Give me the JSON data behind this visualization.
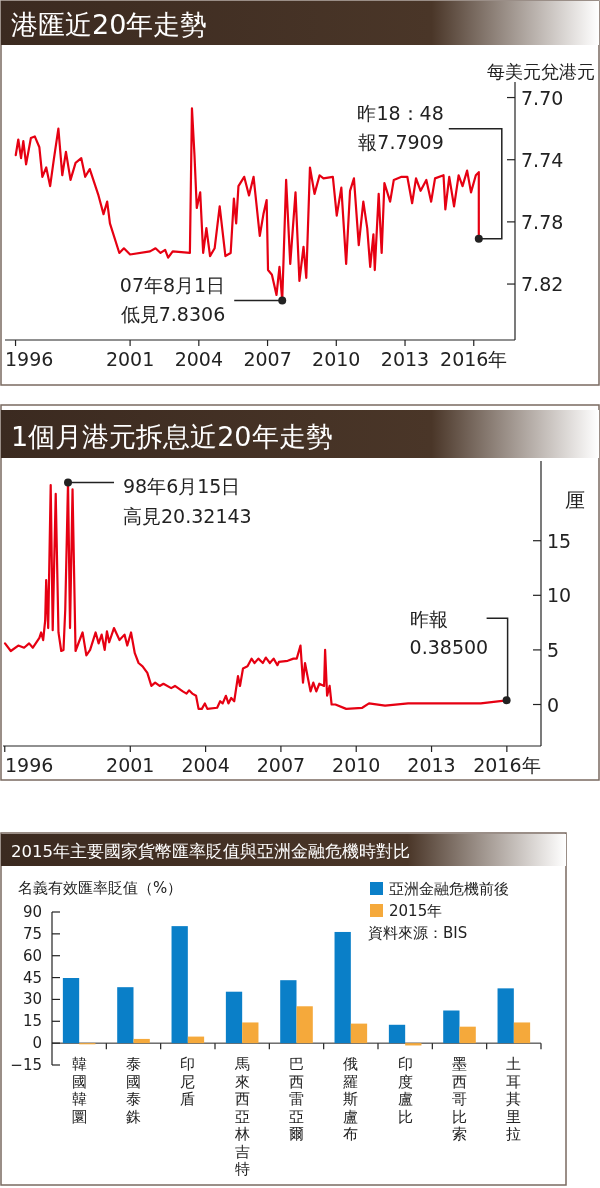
{
  "chart_data": [
    {
      "type": "line",
      "title": "港匯近20年走勢",
      "ylabel": "每美元兌港元",
      "xlim": [
        1995.54,
        2017.8
      ],
      "ylim": [
        7.856,
        7.69
      ],
      "xticks": [
        1996,
        2001,
        2004,
        2007,
        2010,
        2013,
        {
          "value": 2016,
          "label": "2016年"
        }
      ],
      "yticks": [
        {
          "value": 7.7,
          "label": "7.70"
        },
        7.74,
        7.78,
        7.82
      ],
      "x": [
        1996.01,
        1996.12,
        1996.24,
        1996.34,
        1996.46,
        1996.67,
        1996.84,
        1997.04,
        1997.17,
        1997.34,
        1997.51,
        1997.67,
        1997.87,
        1998.04,
        1998.2,
        1998.4,
        1998.62,
        1998.87,
        1999.04,
        1999.24,
        1999.62,
        1999.84,
        2000.0,
        2000.12,
        2000.53,
        2000.73,
        2001.0,
        2001.87,
        2002.11,
        2002.33,
        2002.53,
        2002.66,
        2002.86,
        2003.61,
        2003.7,
        2003.81,
        2003.91,
        2004.06,
        2004.19,
        2004.33,
        2004.49,
        2004.69,
        2004.91,
        2005.16,
        2005.39,
        2005.53,
        2005.63,
        2005.73,
        2005.98,
        2006.19,
        2006.39,
        2006.66,
        2006.82,
        2006.96,
        2007.02,
        2007.19,
        2007.39,
        2007.52,
        2007.64,
        2007.81,
        2007.99,
        2008.22,
        2008.39,
        2008.57,
        2008.69,
        2008.85,
        2009.05,
        2009.27,
        2009.44,
        2009.85,
        2010.02,
        2010.22,
        2010.43,
        2010.6,
        2010.77,
        2010.98,
        2011.18,
        2011.35,
        2011.48,
        2011.62,
        2011.68,
        2011.85,
        2011.98,
        2012.1,
        2012.35,
        2012.51,
        2012.85,
        2013.1,
        2013.31,
        2013.48,
        2013.68,
        2013.93,
        2014.14,
        2014.31,
        2014.68,
        2014.76,
        2014.93,
        2015.14,
        2015.34,
        2015.51,
        2015.71,
        2015.88,
        2016.09,
        2016.22,
        2016.22
      ],
      "series": [
        {
          "color": "#e60012",
          "values": [
            7.737,
            7.727,
            7.739,
            7.728,
            7.743,
            7.726,
            7.725,
            7.732,
            7.751,
            7.745,
            7.757,
            7.74,
            7.72,
            7.75,
            7.735,
            7.753,
            7.742,
            7.739,
            7.751,
            7.746,
            7.763,
            7.775,
            7.767,
            7.781,
            7.8,
            7.797,
            7.801,
            7.799,
            7.797,
            7.8,
            7.798,
            7.803,
            7.799,
            7.8,
            7.707,
            7.737,
            7.771,
            7.761,
            7.8,
            7.784,
            7.802,
            7.797,
            7.77,
            7.802,
            7.8,
            7.765,
            7.781,
            7.757,
            7.751,
            7.763,
            7.751,
            7.789,
            7.775,
            7.766,
            7.811,
            7.814,
            7.827,
            7.809,
            7.8306,
            7.753,
            7.807,
            7.761,
            7.818,
            7.796,
            7.816,
            7.745,
            7.762,
            7.75,
            7.752,
            7.751,
            7.776,
            7.758,
            7.807,
            7.76,
            7.752,
            7.795,
            7.767,
            7.784,
            7.809,
            7.788,
            7.811,
            7.762,
            7.8,
            7.755,
            7.767,
            7.753,
            7.751,
            7.751,
            7.768,
            7.752,
            7.76,
            7.753,
            7.767,
            7.752,
            7.75,
            7.772,
            7.751,
            7.77,
            7.75,
            7.757,
            7.747,
            7.761,
            7.75,
            7.748,
            7.7909
          ]
        }
      ],
      "annotations": [
        {
          "text": "07年8月1日低見7.8306",
          "x": 2007.64,
          "y": 7.8306
        },
        {
          "text": "昨18：48報7.7909",
          "x": 2016.22,
          "y": 7.7909
        }
      ]
    },
    {
      "type": "line",
      "title": "1個月港元拆息近20年走勢",
      "ylabel": "厘",
      "xlim": [
        1995.93,
        2017.36
      ],
      "ylim": [
        -3.8,
        22.3
      ],
      "xticks": [
        1996,
        2001,
        2004,
        2007,
        2010,
        2013,
        {
          "value": 2016,
          "label": "2016年"
        }
      ],
      "yticks": [
        0,
        5,
        10,
        15
      ],
      "x": [
        1996.01,
        1996.24,
        1996.54,
        1996.77,
        1996.97,
        1997.12,
        1997.38,
        1997.45,
        1997.53,
        1997.61,
        1997.65,
        1997.73,
        1997.83,
        1997.91,
        1998.03,
        1998.14,
        1998.25,
        1998.34,
        1998.41,
        1998.52,
        1998.6,
        1998.7,
        1998.82,
        1998.95,
        1999.1,
        1999.25,
        1999.4,
        1999.62,
        1999.74,
        1999.86,
        1999.98,
        2000.07,
        2000.16,
        2000.35,
        2000.57,
        2000.77,
        2000.88,
        2001.03,
        2001.18,
        2001.33,
        2001.49,
        2001.68,
        2001.84,
        2001.99,
        2002.17,
        2002.32,
        2002.63,
        2002.78,
        2003.09,
        2003.24,
        2003.34,
        2003.47,
        2003.62,
        2003.72,
        2003.85,
        2003.97,
        2004.07,
        2004.46,
        2004.58,
        2004.68,
        2004.81,
        2004.91,
        2005.02,
        2005.14,
        2005.29,
        2005.37,
        2005.49,
        2005.67,
        2005.83,
        2005.95,
        2006.1,
        2006.28,
        2006.4,
        2006.56,
        2006.71,
        2006.86,
        2006.92,
        2007.27,
        2007.5,
        2007.63,
        2007.78,
        2007.88,
        2007.96,
        2008.06,
        2008.18,
        2008.29,
        2008.41,
        2008.53,
        2008.72,
        2008.76,
        2008.84,
        2008.94,
        2009.02,
        2009.17,
        2009.6,
        2010.24,
        2010.51,
        2011.15,
        2012.07,
        2013.89,
        2014.96,
        2015.99
      ],
      "series": [
        {
          "color": "#e60012",
          "values": [
            5.6,
            4.9,
            5.4,
            5.2,
            5.6,
            5.2,
            6.1,
            6.6,
            5.9,
            7.7,
            11.4,
            7.0,
            20.1,
            6.8,
            19.3,
            6.6,
            4.9,
            5.0,
            8.7,
            20.32143,
            7.0,
            19.7,
            4.9,
            5.7,
            6.6,
            4.5,
            5.0,
            6.6,
            5.6,
            6.4,
            5.0,
            6.7,
            5.7,
            7.0,
            5.9,
            6.4,
            5.4,
            6.6,
            4.7,
            3.8,
            3.5,
            2.9,
            1.7,
            2.0,
            1.7,
            1.9,
            1.5,
            1.7,
            1.2,
            1.0,
            1.3,
            1.0,
            0.8,
            -0.4,
            -0.4,
            0.1,
            -0.4,
            -0.3,
            0.3,
            0.1,
            0.8,
            0.1,
            0.6,
            0.3,
            2.6,
            1.7,
            3.3,
            3.5,
            4.2,
            3.8,
            4.2,
            3.8,
            4.3,
            3.8,
            4.2,
            3.6,
            3.9,
            4.0,
            4.2,
            4.2,
            5.4,
            2.0,
            3.8,
            2.6,
            1.2,
            2.0,
            1.2,
            1.9,
            1.7,
            5.0,
            0.8,
            1.7,
            0,
            0,
            -0.4,
            -0.3,
            0.1,
            -0.1,
            0.1,
            0.1,
            0.1,
            0.385
          ]
        }
      ],
      "annotations": [
        {
          "text": "98年6月15日高見20.32143",
          "x": 1998.52,
          "y": 20.32143
        },
        {
          "text": "昨報0.38500",
          "x": 2015.99,
          "y": 0.385
        }
      ]
    },
    {
      "type": "bar",
      "title": "2015年主要國家貨幣匯率貶值與亞洲金融危機時對比",
      "ylabel": "名義有效匯率貶值（%）",
      "categories": [
        "韓國韓圜",
        "泰國泰銖",
        "印尼盾",
        "馬來西亞林吉特",
        "巴西雷亞爾",
        "俄羅斯盧布",
        "印度盧比",
        "墨西哥比索",
        "土耳其里拉"
      ],
      "series": [
        {
          "name": "亞洲金融危機前後",
          "color": "#0a7fc8",
          "values": [
            44.7,
            38.4,
            80.3,
            35.3,
            43.2,
            76.3,
            12.6,
            22.4,
            37.6
          ]
        },
        {
          "name": "2015年",
          "color": "#f5a93b",
          "values": [
            -0.8,
            2.9,
            4.5,
            14.2,
            25.3,
            13.4,
            -1.6,
            11.3,
            14.2
          ]
        }
      ],
      "ylim": [
        -15,
        90
      ],
      "yticks": [
        {
          "value": -15,
          "label": "−15"
        },
        0,
        15,
        30,
        45,
        60,
        75,
        90
      ],
      "legend": "top right",
      "annotations": [
        "資料來源：BIS"
      ]
    }
  ]
}
